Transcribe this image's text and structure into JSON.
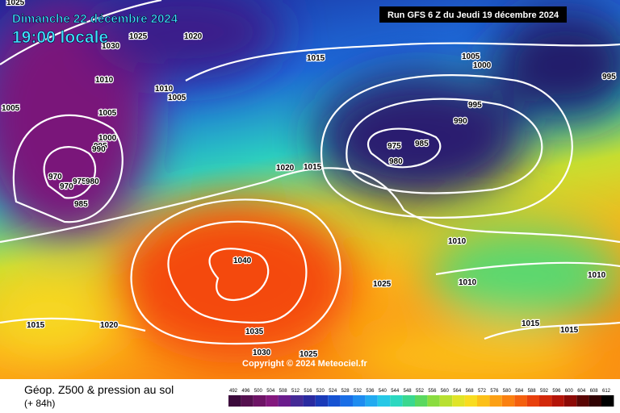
{
  "header": {
    "date": "Dimanche 22 décembre 2024",
    "time": "19:00 locale",
    "run": "Run GFS 6 Z du Jeudi 19 décembre 2024"
  },
  "isobar_labels": [
    "1025",
    "1020",
    "1025",
    "1030",
    "1010",
    "1005",
    "1010",
    "1005",
    "1005",
    "1000",
    "995",
    "990",
    "970",
    "975",
    "980",
    "970",
    "985",
    "1015",
    "1005",
    "1000",
    "995",
    "995",
    "990",
    "975",
    "985",
    "980",
    "1020",
    "1015",
    "1010",
    "1010",
    "1010",
    "1040",
    "1025",
    "1015",
    "1020",
    "1035",
    "1015",
    "1015",
    "1030",
    "1025"
  ],
  "copyright": "Copyright © 2024 Meteociel.fr",
  "legend": {
    "title": "Géop. Z500 & pression au sol",
    "lead": "(+ 84h)",
    "ticks": [
      492,
      496,
      500,
      504,
      508,
      512,
      516,
      520,
      524,
      528,
      532,
      536,
      540,
      544,
      548,
      552,
      556,
      560,
      564,
      568,
      572,
      576,
      580,
      584,
      588,
      592,
      596,
      600,
      604,
      608,
      612
    ],
    "colors": [
      "#3c0a3c",
      "#55104f",
      "#6e1466",
      "#84187e",
      "#6a1c8c",
      "#452a96",
      "#2a2aa0",
      "#1a3ab8",
      "#1652d2",
      "#1a6ee6",
      "#1e8cf0",
      "#22aaf0",
      "#26c8e6",
      "#2cd8c0",
      "#3ad890",
      "#5ad860",
      "#8adc40",
      "#b8e030",
      "#e0e428",
      "#f8dc20",
      "#fcc018",
      "#fca014",
      "#fa8010",
      "#f4600e",
      "#e8400c",
      "#d2280a",
      "#b41408",
      "#8c0a06",
      "#5a0604",
      "#300202",
      "#000000"
    ]
  }
}
